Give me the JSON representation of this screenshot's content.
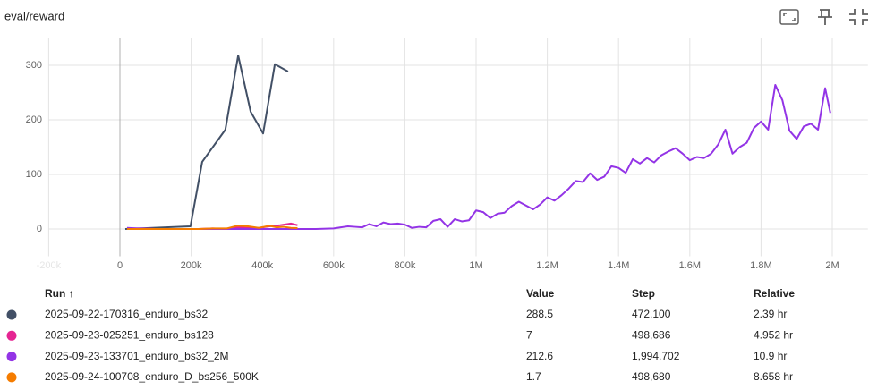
{
  "chart_data": {
    "type": "line",
    "title": "eval/reward",
    "xlim": [
      -200000,
      2100000
    ],
    "ylim": [
      -50,
      350
    ],
    "xticks": [
      {
        "value": -200000,
        "label": "-200k"
      },
      0,
      {
        "value": 200000,
        "label": "200k"
      },
      {
        "value": 400000,
        "label": "400k"
      },
      {
        "value": 600000,
        "label": "600k"
      },
      {
        "value": 800000,
        "label": "800k"
      },
      {
        "value": 1000000,
        "label": "1M"
      },
      {
        "value": 1200000,
        "label": "1.2M"
      },
      {
        "value": 1400000,
        "label": "1.4M"
      },
      {
        "value": 1600000,
        "label": "1.6M"
      },
      {
        "value": 1800000,
        "label": "1.8M"
      },
      {
        "value": 2000000,
        "label": "2M"
      }
    ],
    "yticks": [
      0,
      100,
      200,
      300
    ],
    "grid": true,
    "series": [
      {
        "name": "2025-09-22-170316_enduro_bs32",
        "color": "#425066",
        "x": [
          15000,
          198000,
          231000,
          296000,
          332000,
          367000,
          402000,
          435000,
          472100
        ],
        "values": [
          0,
          5,
          123,
          182,
          318,
          215,
          175,
          302,
          288.5
        ]
      },
      {
        "name": "2025-09-23-025251_enduro_bs128",
        "color": "#e52592",
        "x": [
          20000,
          60000,
          100000,
          140000,
          180000,
          220000,
          260000,
          300000,
          330000,
          360000,
          390000,
          420000,
          450000,
          470000,
          480000,
          498686
        ],
        "values": [
          1,
          1,
          0,
          0,
          0,
          0,
          1,
          0,
          3,
          2,
          2,
          5,
          7,
          9,
          10,
          7
        ]
      },
      {
        "name": "2025-09-23-133701_enduro_bs32_2M",
        "color": "#9334e6",
        "x": [
          20000,
          50000,
          100000,
          150000,
          200000,
          250000,
          300000,
          350000,
          400000,
          450000,
          500000,
          550000,
          600000,
          620000,
          640000,
          660000,
          680000,
          700000,
          720000,
          740000,
          760000,
          780000,
          800000,
          820000,
          840000,
          860000,
          880000,
          900000,
          920000,
          940000,
          960000,
          980000,
          1000000,
          1020000,
          1040000,
          1060000,
          1080000,
          1100000,
          1120000,
          1140000,
          1160000,
          1180000,
          1200000,
          1220000,
          1240000,
          1260000,
          1280000,
          1300000,
          1320000,
          1340000,
          1360000,
          1380000,
          1400000,
          1420000,
          1440000,
          1460000,
          1480000,
          1500000,
          1520000,
          1540000,
          1560000,
          1580000,
          1600000,
          1620000,
          1640000,
          1660000,
          1680000,
          1700000,
          1720000,
          1740000,
          1760000,
          1780000,
          1800000,
          1820000,
          1840000,
          1860000,
          1880000,
          1900000,
          1920000,
          1940000,
          1960000,
          1980000,
          1994702
        ],
        "values": [
          2,
          1,
          0,
          0,
          0,
          0,
          0,
          0,
          0,
          0,
          0,
          0,
          1,
          3,
          5,
          4,
          3,
          9,
          5,
          12,
          9,
          10,
          8,
          2,
          4,
          3,
          15,
          18,
          4,
          18,
          14,
          16,
          34,
          31,
          20,
          28,
          30,
          42,
          50,
          43,
          36,
          45,
          58,
          52,
          62,
          74,
          88,
          86,
          102,
          90,
          96,
          115,
          112,
          103,
          128,
          120,
          130,
          122,
          135,
          142,
          148,
          138,
          126,
          132,
          130,
          138,
          155,
          182,
          138,
          150,
          158,
          185,
          197,
          182,
          264,
          236,
          180,
          165,
          188,
          193,
          182,
          258,
          212.6
        ]
      },
      {
        "name": "2025-09-24-100708_enduro_D_bs256_500K",
        "color": "#f57c00",
        "x": [
          20000,
          60000,
          100000,
          140000,
          180000,
          220000,
          260000,
          300000,
          330000,
          360000,
          390000,
          420000,
          440000,
          460000,
          480000,
          498680
        ],
        "values": [
          0,
          0,
          0,
          0,
          0,
          0,
          1,
          1,
          6,
          5,
          2,
          6,
          3,
          4,
          2,
          1.7
        ]
      }
    ]
  },
  "table": {
    "columns": [
      "Run ↑",
      "Value",
      "Step",
      "Relative"
    ],
    "rows": [
      {
        "value": 288.5,
        "step": "472,100",
        "relative": "2.39 hr"
      },
      {
        "value": 7,
        "step": "498,686",
        "relative": "4.952 hr"
      },
      {
        "value": 212.6,
        "step": "1,994,702",
        "relative": "10.9 hr"
      },
      {
        "value": 1.7,
        "step": "498,680",
        "relative": "8.658 hr"
      }
    ]
  }
}
